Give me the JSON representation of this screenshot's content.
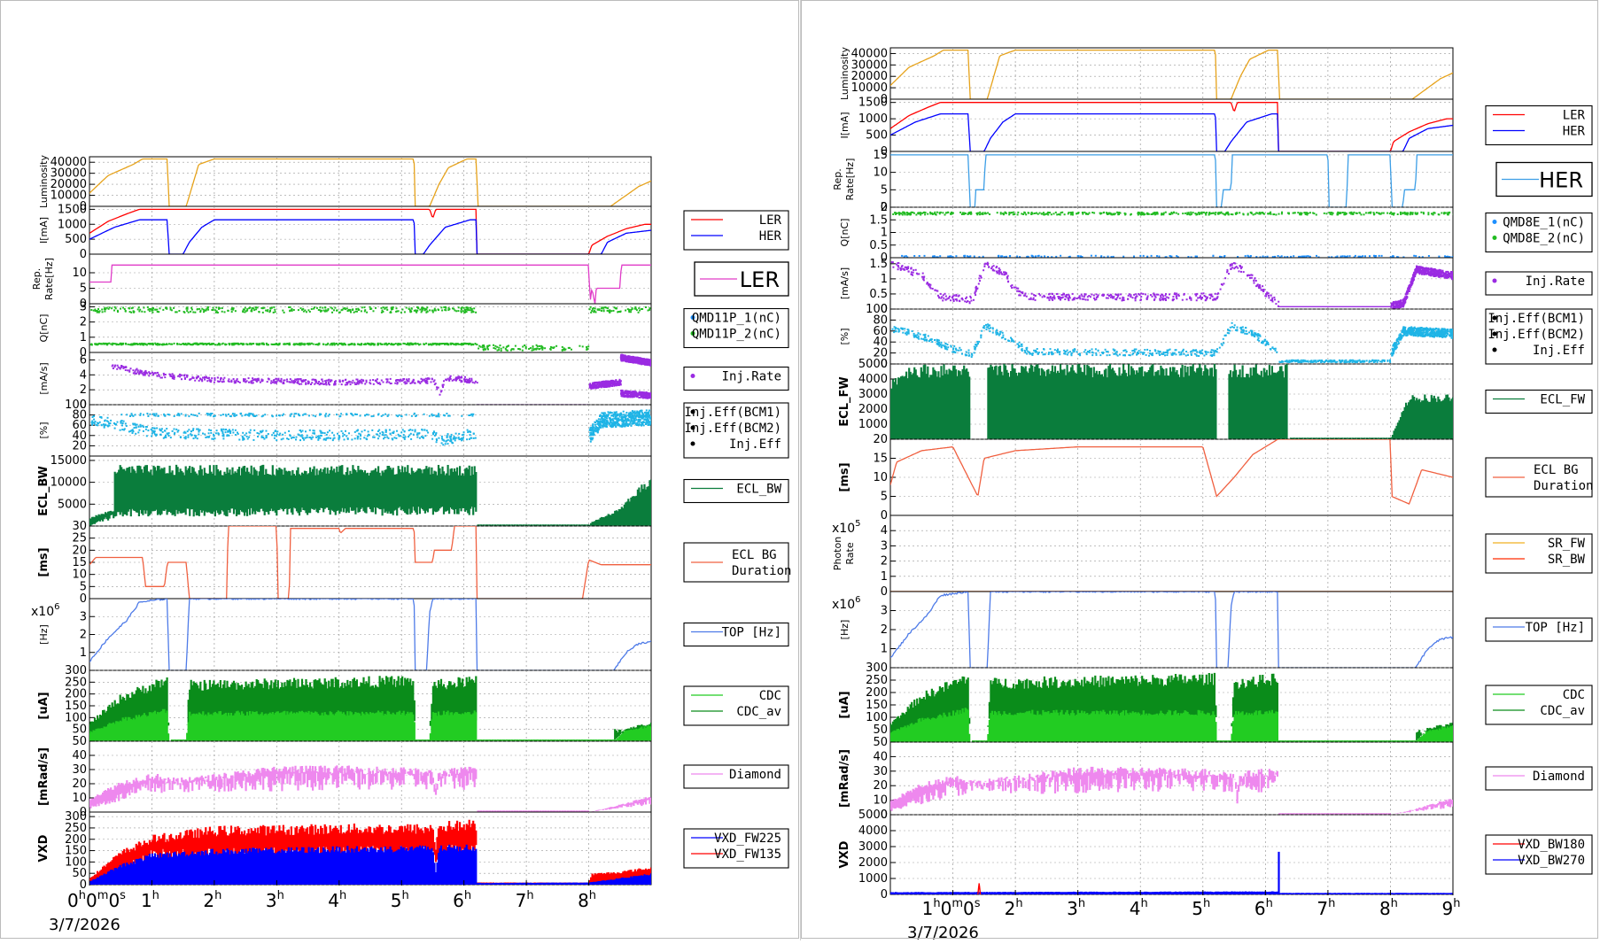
{
  "date_label": "3/7/2026",
  "panels": [
    {
      "side": "left",
      "x_tick_labels": [
        "0h0m0s",
        "1h",
        "2h",
        "3h",
        "4h",
        "5h",
        "6h",
        "7h",
        "8h"
      ],
      "date_label": "3/7/2026",
      "rows": [
        {
          "ylabel": "Luminosity",
          "ymax": 45000,
          "ticks": [
            "40000",
            "30000",
            "20000",
            "10000",
            "0"
          ],
          "legend": [],
          "legend_title": ""
        },
        {
          "ylabel": "I[mA]",
          "ymax": 1600,
          "ticks": [
            "1500",
            "1000",
            "500",
            "0"
          ],
          "legend": [
            "LER",
            "HER"
          ],
          "legend_title": ""
        },
        {
          "ylabel": "Rep. Rate[Hz]",
          "ymax": 16,
          "ticks": [
            "10",
            "5",
            "0"
          ],
          "legend": [],
          "legend_title": "LER"
        },
        {
          "ylabel": "Q[nC]",
          "ymax": 3.2,
          "ticks": [
            "3",
            "2",
            "1",
            "0"
          ],
          "legend": [
            "QMD11P_1(nC)",
            "QMD11P_2(nC)"
          ],
          "legend_title": ""
        },
        {
          "ylabel": "[mA/s]",
          "ymax": 7,
          "ticks": [
            "6",
            "4",
            "2",
            "0"
          ],
          "legend": [
            "Inj.Rate"
          ],
          "legend_title": ""
        },
        {
          "ylabel": "[%]",
          "ymax": 100,
          "ticks": [
            "100",
            "80",
            "60",
            "40",
            "20"
          ],
          "legend": [
            "Inj.Eff(BCM1)",
            "Inj.Eff(BCM2)",
            "Inj.Eff"
          ],
          "legend_title": ""
        },
        {
          "ylabel": "ECL_BW",
          "ymax": 16000,
          "ticks": [
            "15000",
            "10000",
            "5000"
          ],
          "legend": [
            "ECL_BW"
          ],
          "legend_title": ""
        },
        {
          "ylabel": "[ms]",
          "ymax": 30,
          "ticks": [
            "30",
            "25",
            "20",
            "15",
            "10",
            "5",
            "0"
          ],
          "legend": [
            "ECL BG Duration"
          ],
          "legend_title": ""
        },
        {
          "ylabel": "[Hz]",
          "ymax": 4,
          "ticks": [
            "3",
            "2",
            "1"
          ],
          "legend": [
            "TOP [Hz]"
          ],
          "legend_title": "",
          "multiplier": "x10^6"
        },
        {
          "ylabel": "[uA]",
          "ymax": 300,
          "ticks": [
            "300",
            "250",
            "200",
            "150",
            "100",
            "50"
          ],
          "legend": [
            "CDC",
            "CDC_av"
          ],
          "legend_title": ""
        },
        {
          "ylabel": "[mRad/s]",
          "ymax": 50,
          "ticks": [
            "50",
            "40",
            "30",
            "20",
            "10",
            "0"
          ],
          "legend": [
            "Diamond"
          ],
          "legend_title": ""
        },
        {
          "ylabel": "VXD",
          "ymax": 320,
          "ticks": [
            "300",
            "250",
            "200",
            "150",
            "100",
            "50",
            "0"
          ],
          "legend": [
            "VXD_FW225",
            "VXD_FW135"
          ],
          "legend_title": ""
        }
      ]
    },
    {
      "side": "right",
      "x_tick_labels": [
        "1h0m0s",
        "2h",
        "3h",
        "4h",
        "5h",
        "6h",
        "7h",
        "8h",
        "9h"
      ],
      "date_label": "3/7/2026",
      "rows": [
        {
          "ylabel": "Luminosity",
          "ymax": 45000,
          "ticks": [
            "40000",
            "30000",
            "20000",
            "10000",
            "0"
          ],
          "legend": [],
          "legend_title": ""
        },
        {
          "ylabel": "I[mA]",
          "ymax": 1600,
          "ticks": [
            "1500",
            "1000",
            "500",
            "0"
          ],
          "legend": [
            "LER",
            "HER"
          ],
          "legend_title": ""
        },
        {
          "ylabel": "Rep. Rate[Hz]",
          "ymax": 16,
          "ticks": [
            "15",
            "10",
            "5",
            "0"
          ],
          "legend": [],
          "legend_title": "HER"
        },
        {
          "ylabel": "Q[nC]",
          "ymax": 2,
          "ticks": [
            "2",
            "1.5",
            "1",
            "0.5",
            "0"
          ],
          "legend": [
            "QMD8E_1(nC)",
            "QMD8E_2(nC)"
          ],
          "legend_title": ""
        },
        {
          "ylabel": "[mA/s]",
          "ymax": 1.7,
          "ticks": [
            "1.5",
            "1",
            "0.5",
            "0"
          ],
          "legend": [
            "Inj.Rate"
          ],
          "legend_title": ""
        },
        {
          "ylabel": "[%]",
          "ymax": 100,
          "ticks": [
            "100",
            "80",
            "60",
            "40",
            "20",
            "0"
          ],
          "legend": [
            "Inj.Eff(BCM1)",
            "Inj.Eff(BCM2)",
            "Inj.Eff"
          ],
          "legend_title": ""
        },
        {
          "ylabel": "ECL_FW",
          "ymax": 5000,
          "ticks": [
            "5000",
            "4000",
            "3000",
            "2000",
            "1000"
          ],
          "legend": [
            "ECL_FW"
          ],
          "legend_title": ""
        },
        {
          "ylabel": "[ms]",
          "ymax": 20,
          "ticks": [
            "20",
            "15",
            "10",
            "5",
            "0"
          ],
          "legend": [
            "ECL BG Duration"
          ],
          "legend_title": ""
        },
        {
          "ylabel": "Photon Rate",
          "ymax": 5,
          "ticks": [
            "4",
            "3",
            "2",
            "1",
            "0"
          ],
          "legend": [
            "SR_FW",
            "SR_BW"
          ],
          "legend_title": "",
          "multiplier": "x10^5"
        },
        {
          "ylabel": "[Hz]",
          "ymax": 4,
          "ticks": [
            "3",
            "2",
            "1"
          ],
          "legend": [
            "TOP [Hz]"
          ],
          "legend_title": "",
          "multiplier": "x10^6"
        },
        {
          "ylabel": "[uA]",
          "ymax": 300,
          "ticks": [
            "300",
            "250",
            "200",
            "150",
            "100",
            "50"
          ],
          "legend": [
            "CDC",
            "CDC_av"
          ],
          "legend_title": ""
        },
        {
          "ylabel": "[mRad/s]",
          "ymax": 50,
          "ticks": [
            "50",
            "40",
            "30",
            "20",
            "10",
            "0"
          ],
          "legend": [
            "Diamond"
          ],
          "legend_title": ""
        },
        {
          "ylabel": "VXD",
          "ymax": 5000,
          "ticks": [
            "5000",
            "4000",
            "3000",
            "2000",
            "1000",
            "0"
          ],
          "legend": [
            "VXD_BW180",
            "VXD_BW270"
          ],
          "legend_title": ""
        }
      ]
    }
  ],
  "colors": {
    "luminosity": "#e6a21a",
    "ler": "#ff0000",
    "her": "#0000ff",
    "rep_ler": "#e03cc8",
    "rep_her": "#3c9ee6",
    "q1": "#1e90ff",
    "q2": "#22bb22",
    "inj_rate": "#9a2be2",
    "inj_eff": "#1fb4e6",
    "ecl": "#0a7d3c",
    "ecl_bg": "#f06040",
    "top": "#4e7be8",
    "sr_fw": "#f0b020",
    "sr_bw": "#ff2a00",
    "cdc": "#0a8c1a",
    "cdc_av": "#22cc22",
    "diamond": "#ee88ee",
    "vxd_a": "#0000ff",
    "vxd_b": "#ff0000"
  },
  "chart_data": [
    {
      "type": "line",
      "title": "",
      "x_unit": "hours",
      "xlim": [
        0,
        9
      ],
      "series": [
        {
          "name": "",
          "x": [
            0,
            0.5,
            0.8,
            1.25,
            1.3,
            2,
            5.2,
            5.3,
            5.7,
            6.1,
            6.2,
            8.4,
            8.7,
            9
          ],
          "values": [
            10000,
            35000,
            43000,
            43000,
            0,
            43000,
            43000,
            0,
            35000,
            43000,
            0,
            0,
            15000,
            23000
          ]
        },
        {
          "name": "LER",
          "x": [
            0,
            0.4,
            0.8,
            5.5,
            5.6,
            6.2,
            8.0,
            8.5,
            9
          ],
          "values": [
            700,
            1250,
            1500,
            1500,
            1200,
            1500,
            0,
            600,
            1000
          ]
        },
        {
          "name": "HER",
          "x": [
            0,
            0.5,
            1.25,
            1.3,
            2.0,
            5.2,
            5.3,
            6.1,
            6.2,
            8.4,
            9
          ],
          "values": [
            600,
            1100,
            1150,
            0,
            1150,
            1150,
            0,
            1150,
            0,
            0,
            800
          ]
        },
        {
          "name": "Inj.Rate",
          "x": [
            0.4,
            2,
            4,
            6.2,
            8,
            8.5,
            9
          ],
          "values": [
            5,
            3.2,
            3.0,
            3.2,
            0,
            3,
            6
          ]
        },
        {
          "name": "Diamond",
          "x": [
            0,
            1,
            2,
            3,
            4,
            5,
            6.2,
            6.3,
            8,
            9
          ],
          "values": [
            10,
            28,
            25,
            31,
            30,
            30,
            30,
            0,
            0,
            12
          ]
        },
        {
          "name": "VXD_FW135",
          "x": [
            0,
            1,
            2,
            4,
            6,
            6.2,
            8,
            9
          ],
          "values": [
            20,
            200,
            240,
            250,
            260,
            0,
            0,
            60
          ]
        },
        {
          "name": "VXD_FW225",
          "x": [
            0,
            1,
            2,
            4,
            6,
            6.2,
            8,
            9
          ],
          "values": [
            10,
            130,
            150,
            160,
            170,
            0,
            0,
            40
          ]
        }
      ]
    }
  ]
}
